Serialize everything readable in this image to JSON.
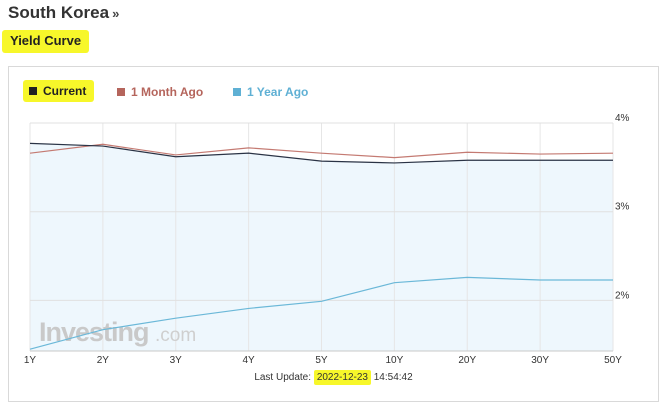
{
  "header": {
    "country": "South Korea",
    "raquo": "»",
    "section_title": "Yield Curve"
  },
  "legend": [
    {
      "name": "Current",
      "color": "#222222"
    },
    {
      "name": "1 Month Ago",
      "color": "#b5655c"
    },
    {
      "name": "1 Year Ago",
      "color": "#5fb0d4"
    }
  ],
  "footer": {
    "prefix": "Last Update:",
    "date": "2022-12-23",
    "time": "14:54:42"
  },
  "watermark": {
    "brand": "Investing",
    "suffix": ".com"
  },
  "chart_data": {
    "type": "line",
    "title": "",
    "xlabel": "",
    "ylabel": "",
    "categories": [
      "1Y",
      "2Y",
      "3Y",
      "4Y",
      "5Y",
      "10Y",
      "20Y",
      "30Y",
      "50Y"
    ],
    "y_ticks": [
      "4%",
      "3%",
      "2%"
    ],
    "y_tick_values": [
      4,
      3,
      2
    ],
    "ylim": [
      1.43,
      4.0
    ],
    "grid": true,
    "legend_position": "top-left",
    "series": [
      {
        "name": "Current",
        "color": "#2a3345",
        "values": [
          3.77,
          3.74,
          3.62,
          3.66,
          3.57,
          3.55,
          3.58,
          3.58,
          3.58
        ],
        "fill": "#eef7fd"
      },
      {
        "name": "1 Month Ago",
        "color": "#c47a72",
        "values": [
          3.66,
          3.76,
          3.64,
          3.72,
          3.66,
          3.61,
          3.67,
          3.65,
          3.66
        ]
      },
      {
        "name": "1 Year Ago",
        "color": "#6bb8d8",
        "values": [
          1.45,
          1.67,
          1.8,
          1.91,
          1.99,
          2.2,
          2.26,
          2.23,
          2.23
        ]
      }
    ]
  }
}
